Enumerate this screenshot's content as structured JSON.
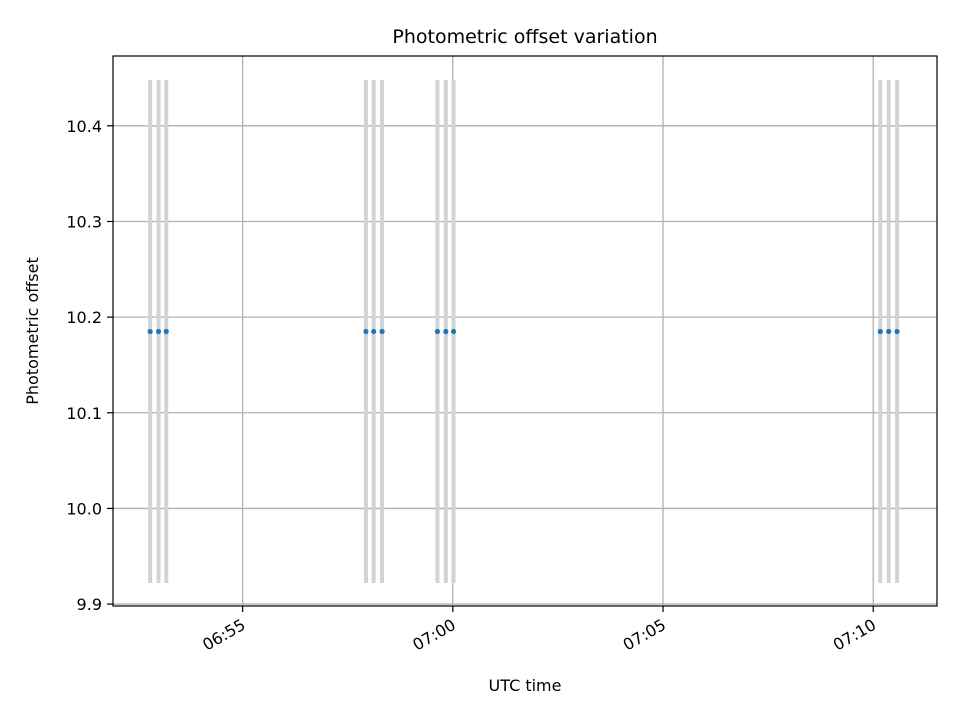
{
  "chart_data": {
    "type": "scatter",
    "title": "Photometric offset variation",
    "xlabel": "UTC time",
    "ylabel": "Photometric offset",
    "x_axis": "time",
    "xlim": [
      "06:51:55",
      "07:11:31"
    ],
    "ylim": [
      9.898,
      10.473
    ],
    "x_ticks": [
      {
        "value": "06:55",
        "label": "06:55"
      },
      {
        "value": "07:00",
        "label": "07:00"
      },
      {
        "value": "07:05",
        "label": "07:05"
      },
      {
        "value": "07:10",
        "label": "07:10"
      }
    ],
    "y_ticks": [
      {
        "value": 9.9,
        "label": "9.9"
      },
      {
        "value": 10.0,
        "label": "10.0"
      },
      {
        "value": 10.1,
        "label": "10.1"
      },
      {
        "value": 10.2,
        "label": "10.2"
      },
      {
        "value": 10.3,
        "label": "10.3"
      },
      {
        "value": 10.4,
        "label": "10.4"
      }
    ],
    "grid": true,
    "points": [
      {
        "x": "06:52:48",
        "y": 10.185,
        "err_low": 9.922,
        "err_high": 10.448
      },
      {
        "x": "06:53:00",
        "y": 10.185,
        "err_low": 9.922,
        "err_high": 10.448
      },
      {
        "x": "06:53:11",
        "y": 10.185,
        "err_low": 9.922,
        "err_high": 10.448
      },
      {
        "x": "06:57:56",
        "y": 10.185,
        "err_low": 9.922,
        "err_high": 10.448
      },
      {
        "x": "06:58:07",
        "y": 10.185,
        "err_low": 9.922,
        "err_high": 10.448
      },
      {
        "x": "06:58:19",
        "y": 10.185,
        "err_low": 9.922,
        "err_high": 10.448
      },
      {
        "x": "06:59:38",
        "y": 10.185,
        "err_low": 9.922,
        "err_high": 10.448
      },
      {
        "x": "06:59:50",
        "y": 10.185,
        "err_low": 9.922,
        "err_high": 10.448
      },
      {
        "x": "07:00:01",
        "y": 10.185,
        "err_low": 9.922,
        "err_high": 10.448
      },
      {
        "x": "07:10:10",
        "y": 10.185,
        "err_low": 9.922,
        "err_high": 10.448
      },
      {
        "x": "07:10:22",
        "y": 10.185,
        "err_low": 9.922,
        "err_high": 10.448
      },
      {
        "x": "07:10:34",
        "y": 10.185,
        "err_low": 9.922,
        "err_high": 10.448
      }
    ],
    "colors": {
      "marker": "#1f77b4",
      "errorbar": "#d3d3d3",
      "grid": "#b0b0b0",
      "axes": "#000000"
    }
  }
}
